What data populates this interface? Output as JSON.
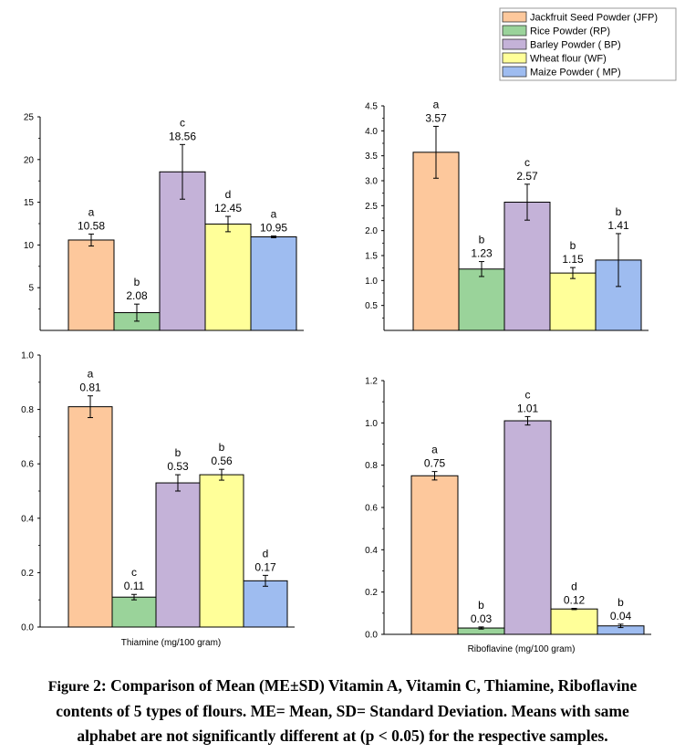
{
  "legend": {
    "items": [
      {
        "label": "Jackfruit Seed Powder (JFP)",
        "color": "#fdc89c"
      },
      {
        "label": "Rice Powder (RP)",
        "color": "#9ad39a"
      },
      {
        "label": "Barley Powder ( BP)",
        "color": "#c4b2d8"
      },
      {
        "label": "Wheat flour (WF)",
        "color": "#ffff99"
      },
      {
        "label": "Maize Powder ( MP)",
        "color": "#9ebcf0"
      }
    ]
  },
  "caption": {
    "figure_word": "Figure",
    "line1": " 2: Comparison of Mean (ME±SD) Vitamin A, Vitamin C, Thiamine, Riboflavine",
    "line2": "contents of 5 types of flours. ME= Mean, SD= Standard Deviation. Means with same",
    "line3": "alphabet are not significantly different at (p < 0.05) for the respective samples."
  },
  "chart_data": [
    {
      "type": "bar",
      "categories": [
        "JFP",
        "RP",
        "BP",
        "WF",
        "MP"
      ],
      "values": [
        10.58,
        2.08,
        18.56,
        12.45,
        10.95
      ],
      "errors": [
        0.7,
        1.0,
        3.2,
        0.9,
        0.1
      ],
      "value_labels": [
        "10.58",
        "2.08",
        "18.56",
        "12.45",
        "10.95"
      ],
      "letters": [
        "a",
        "b",
        "c",
        "d",
        "a"
      ],
      "xlabel": "",
      "ylim": [
        0,
        25
      ],
      "yticks": [
        5,
        10,
        15,
        20,
        25
      ],
      "ytick_labels": [
        "5",
        "10",
        "15",
        "20",
        "25"
      ]
    },
    {
      "type": "bar",
      "categories": [
        "JFP",
        "RP",
        "BP",
        "WF",
        "MP"
      ],
      "values": [
        3.57,
        1.23,
        2.57,
        1.15,
        1.41
      ],
      "errors": [
        0.52,
        0.15,
        0.36,
        0.11,
        0.53
      ],
      "value_labels": [
        "3.57",
        "1.23",
        "2.57",
        "1.15",
        "1.41"
      ],
      "letters": [
        "a",
        "b",
        "c",
        "b",
        "b"
      ],
      "xlabel": "",
      "ylim": [
        0,
        4.5
      ],
      "yticks": [
        0.5,
        1.0,
        1.5,
        2.0,
        2.5,
        3.0,
        3.5,
        4.0,
        4.5
      ],
      "ytick_labels": [
        "0.5",
        "1.0",
        "1.5",
        "2.0",
        "2.5",
        "3.0",
        "3.5",
        "4.0",
        "4.5"
      ]
    },
    {
      "type": "bar",
      "categories": [
        "JFP",
        "RP",
        "BP",
        "WF",
        "MP"
      ],
      "values": [
        0.81,
        0.11,
        0.53,
        0.56,
        0.17
      ],
      "errors": [
        0.04,
        0.01,
        0.03,
        0.02,
        0.02
      ],
      "value_labels": [
        "0.81",
        "0.11",
        "0.53",
        "0.56",
        "0.17"
      ],
      "letters": [
        "a",
        "c",
        "b",
        "b",
        "d"
      ],
      "xlabel": "Thiamine (mg/100 gram)",
      "ylim": [
        0,
        1.0
      ],
      "yticks": [
        0.0,
        0.2,
        0.4,
        0.6,
        0.8,
        1.0
      ],
      "ytick_labels": [
        "0.0",
        "0.2",
        "0.4",
        "0.6",
        "0.8",
        "1.0"
      ]
    },
    {
      "type": "bar",
      "categories": [
        "JFP",
        "RP",
        "BP",
        "WF",
        "MP"
      ],
      "values": [
        0.75,
        0.03,
        1.01,
        0.12,
        0.04
      ],
      "errors": [
        0.02,
        0.005,
        0.02,
        0.003,
        0.008
      ],
      "value_labels": [
        "0.75",
        "0.03",
        "1.01",
        "0.12",
        "0.04"
      ],
      "letters": [
        "a",
        "b",
        "c",
        "d",
        "b"
      ],
      "xlabel": "Riboflavine (mg/100 gram)",
      "ylim": [
        0,
        1.2
      ],
      "yticks": [
        0.0,
        0.2,
        0.4,
        0.6,
        0.8,
        1.0,
        1.2
      ],
      "ytick_labels": [
        "0.0",
        "0.2",
        "0.4",
        "0.6",
        "0.8",
        "1.0",
        "1.2"
      ]
    }
  ]
}
